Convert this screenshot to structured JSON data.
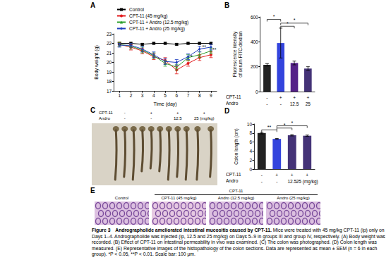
{
  "chart_data": [
    {
      "panel": "A",
      "type": "line",
      "x_label": "Time (day)",
      "y_label": "Body weight (g)",
      "x": [
        1,
        2,
        3,
        4,
        5,
        6,
        7,
        8,
        9
      ],
      "xlim": [
        0.5,
        9.5
      ],
      "xticks": [
        1,
        2,
        3,
        4,
        5,
        6,
        7,
        8,
        9
      ],
      "ylim": [
        17,
        23
      ],
      "yticks": [
        17,
        18,
        19,
        20,
        21,
        22,
        23
      ],
      "grid": false,
      "legend": "top-left",
      "series": [
        {
          "name": "Control",
          "color": "#000000",
          "marker": "square",
          "values": [
            22.0,
            22.0,
            21.9,
            22.0,
            22.0,
            21.9,
            22.0,
            22.0,
            22.0
          ],
          "errors": [
            0.1,
            0.1,
            0.1,
            0.1,
            0.1,
            0.1,
            0.1,
            0.1,
            0.1
          ]
        },
        {
          "name": "CPT-11 (45 mg/kg)",
          "color": "#e31a1c",
          "marker": "circle",
          "values": [
            21.9,
            21.6,
            21.2,
            20.6,
            20.2,
            19.2,
            19.9,
            20.5,
            20.8
          ],
          "errors": [
            0.2,
            0.3,
            0.3,
            0.3,
            0.3,
            0.4,
            0.3,
            0.3,
            0.3
          ]
        },
        {
          "name": "CPT-11 + Andro (12.5 mg/kg)",
          "color": "#2ca02c",
          "marker": "triangle",
          "values": [
            21.9,
            21.7,
            21.3,
            20.7,
            19.9,
            19.5,
            20.5,
            20.8,
            21.2
          ],
          "errors": [
            0.2,
            0.3,
            0.3,
            0.3,
            0.3,
            0.3,
            0.3,
            0.3,
            0.3
          ]
        },
        {
          "name": "CPT-11 + Andro (25 mg/kg)",
          "color": "#1f3fbf",
          "marker": "diamond",
          "values": [
            21.8,
            21.8,
            21.4,
            20.8,
            20.1,
            20.0,
            20.6,
            21.4,
            21.6
          ],
          "errors": [
            0.2,
            0.2,
            0.3,
            0.3,
            0.3,
            0.3,
            0.3,
            0.3,
            0.3
          ]
        }
      ],
      "annotations": [
        {
          "x": 7.3,
          "y": 20.6,
          "text": "*"
        },
        {
          "x": 8.4,
          "y": 21.6,
          "text": "**"
        },
        {
          "x": 9.3,
          "y": 21.3,
          "text": "**"
        }
      ]
    },
    {
      "panel": "B",
      "type": "bar",
      "y_label": "Fluorescence intensity\nof serum FITC-dextran",
      "x_rows": [
        {
          "label": "CPT-11",
          "values": [
            "-",
            "+",
            "+",
            "+"
          ]
        },
        {
          "label": "Andro",
          "values": [
            "-",
            "-",
            "12.5",
            "25"
          ]
        }
      ],
      "values": [
        215,
        390,
        230,
        185
      ],
      "errors": [
        10,
        120,
        15,
        15
      ],
      "colors": [
        "#222222",
        "#3344dd",
        "#552288",
        "#443377"
      ],
      "ylim": [
        0,
        600
      ],
      "yticks": [
        0,
        200,
        400,
        600
      ],
      "grid": false,
      "significance": [
        {
          "from": 0,
          "to": 1,
          "y": 580,
          "label": "*"
        },
        {
          "from": 1,
          "to": 3,
          "y": 550,
          "label": "*"
        },
        {
          "from": 1,
          "to": 2,
          "y": 525,
          "label": "*"
        }
      ]
    },
    {
      "panel": "D",
      "type": "bar",
      "y_label": "Colon length (cm)",
      "x_rows": [
        {
          "label": "CPT-11",
          "values": [
            "-",
            "+",
            "+",
            "+"
          ]
        },
        {
          "label": "Andro",
          "values": [
            "-",
            "-",
            "12.5",
            "25 (mg/kg)"
          ]
        }
      ],
      "values": [
        8.0,
        6.7,
        7.5,
        7.4
      ],
      "errors": [
        0.2,
        0.1,
        0.15,
        0.15
      ],
      "colors": [
        "#222222",
        "#3344dd",
        "#443377",
        "#443377"
      ],
      "ylim": [
        0,
        10
      ],
      "yticks": [
        0,
        2,
        4,
        6,
        8,
        10
      ],
      "grid": false,
      "significance": [
        {
          "from": 0,
          "to": 1,
          "y": 8.7,
          "label": "**"
        },
        {
          "from": 1,
          "to": 2,
          "y": 9.1,
          "label": "*"
        },
        {
          "from": 1,
          "to": 3,
          "y": 9.6,
          "label": "*"
        }
      ]
    }
  ],
  "panel_C": {
    "panel": "C",
    "rows": [
      {
        "label": "CPT-11",
        "values": [
          "-",
          "+",
          "+",
          "+"
        ]
      },
      {
        "label": "Andro",
        "values": [
          "-",
          "-",
          "12.5",
          "25 (mg/kg)"
        ]
      }
    ]
  },
  "panel_E": {
    "panel": "E",
    "group_label": "CPT-11",
    "images": [
      "Control",
      "CPT-11 (45 mg/kg)",
      "Andro (12.5 mg/kg)",
      "Andro (25 mg/kg)"
    ]
  },
  "caption": {
    "label": "Figure 3",
    "title": "Andrographolide ameliorated intestinal mucositis caused by CPT-11.",
    "text": "Mice were treated with 45 mg/kg CPT-11 (ip) only on Days 1–4. Andrographolide was injected (ip, 12.5 and 25 mg/kg) on Days 5–9 in groups III and group IV, respectively. (A) Body weight was recorded. (B) Effect of CPT-11 on intestinal permeability in vivo was examined. (C) The colon was photographed. (D) Colon length was measured. (E) Representative images of the histopathology of the colon sections. Data are represented as mean ± SEM (n = 6 in each group). *P < 0.05, **P < 0.01. Scale bar: 100 μm."
  }
}
